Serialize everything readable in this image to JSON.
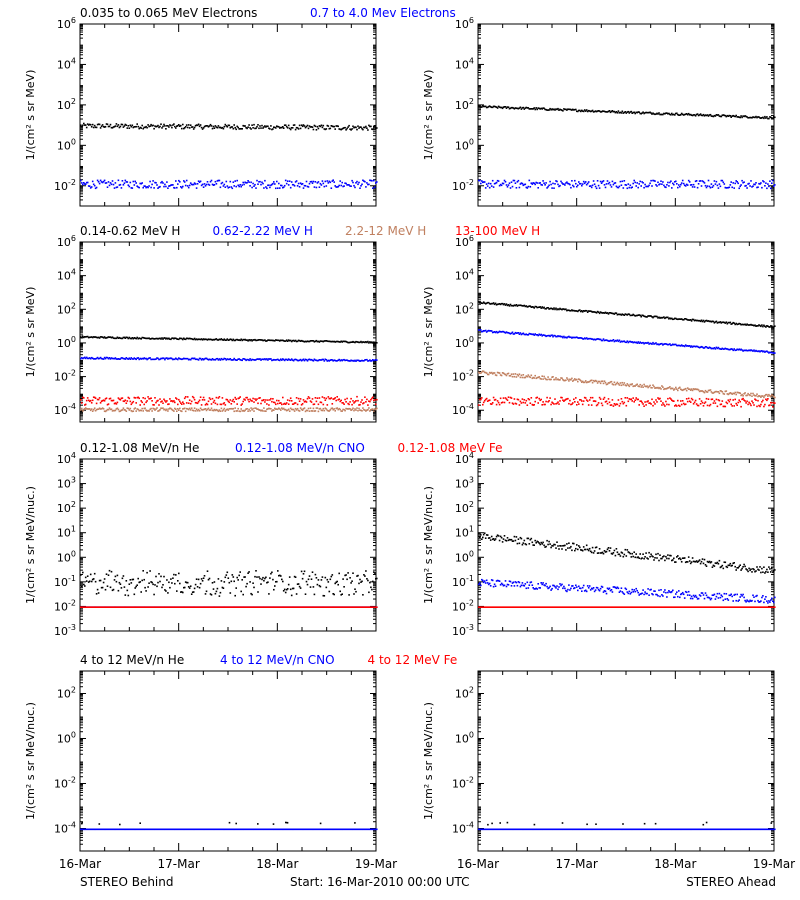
{
  "footer": {
    "left": "STEREO Behind",
    "center": "Start: 16-Mar-2010 00:00 UTC",
    "right": "STEREO Ahead"
  },
  "x_ticks": [
    "16-Mar",
    "17-Mar",
    "18-Mar",
    "19-Mar"
  ],
  "colors": {
    "black": "#000000",
    "blue": "#0000ff",
    "tan": "#c08060",
    "red": "#ff0000"
  },
  "chart_data": [
    {
      "type": "scatter",
      "panel": "electrons-behind",
      "legend": [
        {
          "text": "0.035 to 0.065 MeV Electrons",
          "color": "#000000"
        },
        {
          "text": "0.7 to 4.0 Mev Electrons",
          "color": "#0000ff"
        }
      ],
      "ylabel": "1/(cm² s sr MeV)",
      "yscale": "log",
      "ylim": [
        0.001,
        1000000
      ],
      "y_ticks": [
        [
          "10",
          "-2"
        ],
        [
          "10",
          "0"
        ],
        [
          "10",
          "2"
        ],
        [
          "10",
          "4"
        ],
        [
          "10",
          "6"
        ]
      ],
      "y_tick_exps": [
        -2,
        0,
        2,
        4,
        6
      ],
      "xlim_days": [
        0,
        3
      ],
      "series": [
        {
          "color": "#000000",
          "start": 10,
          "end": 8,
          "spread": 0.12
        },
        {
          "color": "#0000ff",
          "start": 0.013,
          "end": 0.013,
          "spread": 0.2
        }
      ]
    },
    {
      "type": "scatter",
      "panel": "electrons-ahead",
      "legend": [],
      "ylabel": "1/(cm² s sr MeV)",
      "yscale": "log",
      "ylim": [
        0.001,
        1000000
      ],
      "y_ticks": [
        [
          "10",
          "-2"
        ],
        [
          "10",
          "0"
        ],
        [
          "10",
          "2"
        ],
        [
          "10",
          "4"
        ],
        [
          "10",
          "6"
        ]
      ],
      "y_tick_exps": [
        -2,
        0,
        2,
        4,
        6
      ],
      "xlim_days": [
        0,
        3
      ],
      "series": [
        {
          "color": "#000000",
          "start": 90,
          "end": 25,
          "spread": 0.05
        },
        {
          "color": "#0000ff",
          "start": 0.013,
          "end": 0.013,
          "spread": 0.2
        }
      ]
    },
    {
      "type": "scatter",
      "panel": "protons-behind",
      "legend": [
        {
          "text": "0.14-0.62 MeV H",
          "color": "#000000"
        },
        {
          "text": "0.62-2.22 MeV H",
          "color": "#0000ff"
        },
        {
          "text": "2.2-12 MeV H",
          "color": "#c08060"
        },
        {
          "text": "13-100 MeV H",
          "color": "#ff0000"
        }
      ],
      "ylabel": "1/(cm² s sr MeV)",
      "yscale": "log",
      "ylim": [
        2e-05,
        1000000
      ],
      "y_ticks": [
        [
          "10",
          "-4"
        ],
        [
          "10",
          "-2"
        ],
        [
          "10",
          "0"
        ],
        [
          "10",
          "2"
        ],
        [
          "10",
          "4"
        ],
        [
          "10",
          "6"
        ]
      ],
      "y_tick_exps": [
        -4,
        -2,
        0,
        2,
        4,
        6
      ],
      "xlim_days": [
        0,
        3
      ],
      "series": [
        {
          "color": "#000000",
          "start": 2.5,
          "end": 1.2,
          "spread": 0.04
        },
        {
          "color": "#0000ff",
          "start": 0.14,
          "end": 0.1,
          "spread": 0.05
        },
        {
          "color": "#ff0000",
          "start": 0.0004,
          "end": 0.0004,
          "spread": 0.25
        },
        {
          "color": "#c08060",
          "start": 0.00012,
          "end": 0.00012,
          "spread": 0.1
        }
      ]
    },
    {
      "type": "scatter",
      "panel": "protons-ahead",
      "legend": [],
      "ylabel": "1/(cm² s sr MeV)",
      "yscale": "log",
      "ylim": [
        2e-05,
        1000000
      ],
      "y_ticks": [
        [
          "10",
          "-4"
        ],
        [
          "10",
          "-2"
        ],
        [
          "10",
          "0"
        ],
        [
          "10",
          "2"
        ],
        [
          "10",
          "4"
        ],
        [
          "10",
          "6"
        ]
      ],
      "y_tick_exps": [
        -4,
        -2,
        0,
        2,
        4,
        6
      ],
      "xlim_days": [
        0,
        3
      ],
      "series": [
        {
          "color": "#000000",
          "start": 280,
          "end": 10,
          "spread": 0.05
        },
        {
          "color": "#0000ff",
          "start": 6,
          "end": 0.3,
          "spread": 0.05
        },
        {
          "color": "#c08060",
          "start": 0.02,
          "end": 0.0007,
          "spread": 0.1
        },
        {
          "color": "#ff0000",
          "start": 0.0004,
          "end": 0.0003,
          "spread": 0.25
        }
      ]
    },
    {
      "type": "scatter",
      "panel": "ions-behind",
      "legend": [
        {
          "text": "0.12-1.08 MeV/n He",
          "color": "#000000"
        },
        {
          "text": "0.12-1.08 MeV/n CNO",
          "color": "#0000ff"
        },
        {
          "text": "0.12-1.08 MeV Fe",
          "color": "#ff0000"
        }
      ],
      "ylabel": "1/(cm² s sr MeV/nuc.)",
      "yscale": "log",
      "ylim": [
        0.001,
        10000
      ],
      "y_ticks": [
        [
          "10",
          "-3"
        ],
        [
          "10",
          "-2"
        ],
        [
          "10",
          "-1"
        ],
        [
          "10",
          "0"
        ],
        [
          "10",
          "1"
        ],
        [
          "10",
          "2"
        ],
        [
          "10",
          "3"
        ],
        [
          "10",
          "4"
        ]
      ],
      "y_tick_exps": [
        -3,
        -2,
        -1,
        0,
        1,
        2,
        3,
        4
      ],
      "xlim_days": [
        0,
        3
      ],
      "series": [
        {
          "color": "#000000",
          "start": 0.09,
          "end": 0.09,
          "spread": 0.2,
          "levels": [
            0.045,
            0.09,
            0.13,
            0.2
          ]
        },
        {
          "color": "#0000ff",
          "start": 0.01,
          "end": 0.01,
          "spread": 0.0,
          "levels": [
            0.01
          ]
        },
        {
          "color": "#ff0000",
          "start": 0.01,
          "end": 0.01,
          "spread": 0.0,
          "levels": [
            0.01
          ]
        }
      ]
    },
    {
      "type": "scatter",
      "panel": "ions-ahead",
      "legend": [],
      "ylabel": "1/(cm² s sr MeV/nuc.)",
      "yscale": "log",
      "ylim": [
        0.001,
        10000
      ],
      "y_ticks": [
        [
          "10",
          "-3"
        ],
        [
          "10",
          "-2"
        ],
        [
          "10",
          "-1"
        ],
        [
          "10",
          "0"
        ],
        [
          "10",
          "1"
        ],
        [
          "10",
          "2"
        ],
        [
          "10",
          "3"
        ],
        [
          "10",
          "4"
        ]
      ],
      "y_tick_exps": [
        -3,
        -2,
        -1,
        0,
        1,
        2,
        3,
        4
      ],
      "xlim_days": [
        0,
        3
      ],
      "series": [
        {
          "color": "#000000",
          "start": 8,
          "end": 0.3,
          "spread": 0.15
        },
        {
          "color": "#0000ff",
          "start": 0.1,
          "end": 0.02,
          "spread": 0.15
        },
        {
          "color": "#ff0000",
          "start": 0.01,
          "end": 0.01,
          "spread": 0.0,
          "levels": [
            0.01
          ]
        }
      ]
    },
    {
      "type": "scatter",
      "panel": "high-ions-behind",
      "legend": [
        {
          "text": "4 to 12 MeV/n He",
          "color": "#000000"
        },
        {
          "text": "4 to 12 MeV/n CNO",
          "color": "#0000ff"
        },
        {
          "text": "4 to 12 MeV Fe",
          "color": "#ff0000"
        }
      ],
      "ylabel": "1/(cm² s sr MeV/nuc.)",
      "yscale": "log",
      "ylim": [
        1e-05,
        1000
      ],
      "y_ticks": [
        [
          "10",
          "-4"
        ],
        [
          "10",
          "-2"
        ],
        [
          "10",
          "0"
        ],
        [
          "10",
          "2"
        ]
      ],
      "y_tick_exps": [
        -4,
        -2,
        0,
        2
      ],
      "xlim_days": [
        0,
        3
      ],
      "series": [
        {
          "color": "#0000ff",
          "start": 0.0001,
          "end": 0.0001,
          "spread": 0.0,
          "levels": [
            0.0001
          ]
        },
        {
          "color": "#000000",
          "start": 0.00018,
          "end": 0.00018,
          "spread": 0.05,
          "sparse": true
        }
      ]
    },
    {
      "type": "scatter",
      "panel": "high-ions-ahead",
      "legend": [],
      "ylabel": "1/(cm² s sr MeV/nuc.)",
      "yscale": "log",
      "ylim": [
        1e-05,
        1000
      ],
      "y_ticks": [
        [
          "10",
          "-4"
        ],
        [
          "10",
          "-2"
        ],
        [
          "10",
          "0"
        ],
        [
          "10",
          "2"
        ]
      ],
      "y_tick_exps": [
        -4,
        -2,
        0,
        2
      ],
      "xlim_days": [
        0,
        3
      ],
      "series": [
        {
          "color": "#0000ff",
          "start": 0.0001,
          "end": 0.0001,
          "spread": 0.0,
          "levels": [
            0.0001
          ]
        },
        {
          "color": "#000000",
          "start": 0.00018,
          "end": 0.00018,
          "spread": 0.05,
          "sparse": true
        }
      ]
    }
  ]
}
